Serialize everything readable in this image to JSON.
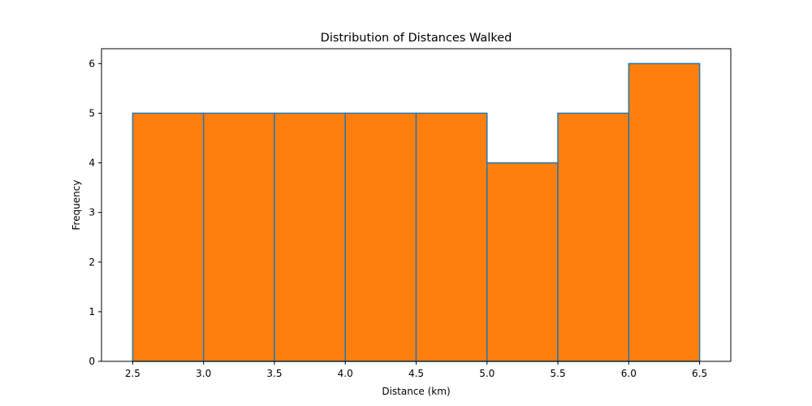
{
  "chart_data": {
    "type": "bar",
    "title": "Distribution of Distances Walked",
    "xlabel": "Distance (km)",
    "ylabel": "Frequency",
    "bins": [
      {
        "start": 2.5,
        "end": 3.0,
        "count": 5
      },
      {
        "start": 3.0,
        "end": 3.5,
        "count": 5
      },
      {
        "start": 3.5,
        "end": 4.0,
        "count": 5
      },
      {
        "start": 4.0,
        "end": 4.5,
        "count": 5
      },
      {
        "start": 4.5,
        "end": 5.0,
        "count": 5
      },
      {
        "start": 5.0,
        "end": 5.5,
        "count": 4
      },
      {
        "start": 5.5,
        "end": 6.0,
        "count": 5
      },
      {
        "start": 6.0,
        "end": 6.5,
        "count": 6
      }
    ],
    "xlim": [
      2.28,
      6.72
    ],
    "ylim": [
      0,
      6.3
    ],
    "xticks": [
      "2.5",
      "3.0",
      "3.5",
      "4.0",
      "4.5",
      "5.0",
      "5.5",
      "6.0",
      "6.5"
    ],
    "yticks": [
      "0",
      "1",
      "2",
      "3",
      "4",
      "5",
      "6"
    ],
    "grid": false,
    "colors": {
      "bar_fill": "#ff7f0e",
      "bar_edge": "#1f77b4",
      "axis": "#000000"
    }
  }
}
